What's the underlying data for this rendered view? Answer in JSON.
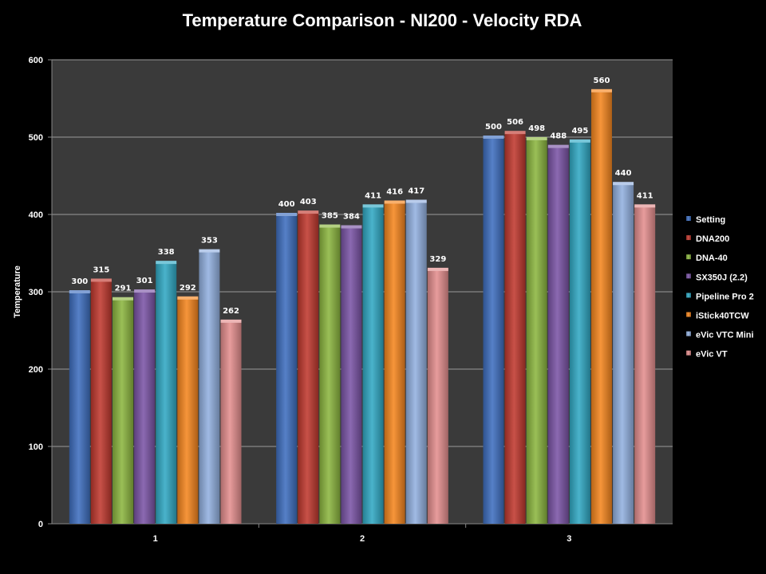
{
  "chart_data": {
    "type": "bar",
    "title": "Temperature Comparison - NI200 - Velocity RDA",
    "xlabel": "",
    "ylabel": "Temperature",
    "categories": [
      "1",
      "2",
      "3"
    ],
    "ylim": [
      0,
      600
    ],
    "yticks": [
      0,
      100,
      200,
      300,
      400,
      500,
      600
    ],
    "grid": true,
    "legend_position": "right",
    "series": [
      {
        "name": "Setting",
        "values": [
          300,
          400,
          500
        ],
        "color": "#3f6fbf"
      },
      {
        "name": "DNA200",
        "values": [
          315,
          403,
          506
        ],
        "color": "#c0392f"
      },
      {
        "name": "DNA-40",
        "values": [
          291,
          385,
          498
        ],
        "color": "#8cb640"
      },
      {
        "name": "SX350J (2.2)",
        "values": [
          301,
          384,
          488
        ],
        "color": "#7b55a6"
      },
      {
        "name": "Pipeline Pro 2",
        "values": [
          338,
          411,
          495
        ],
        "color": "#31a9c4"
      },
      {
        "name": "iStick40TCW",
        "values": [
          292,
          416,
          560
        ],
        "color": "#f5861f"
      },
      {
        "name": "eVic VTC Mini",
        "values": [
          353,
          417,
          440
        ],
        "color": "#93b1e0"
      },
      {
        "name": "eVic VT",
        "values": [
          262,
          329,
          411
        ],
        "color": "#e48f8f"
      }
    ]
  }
}
